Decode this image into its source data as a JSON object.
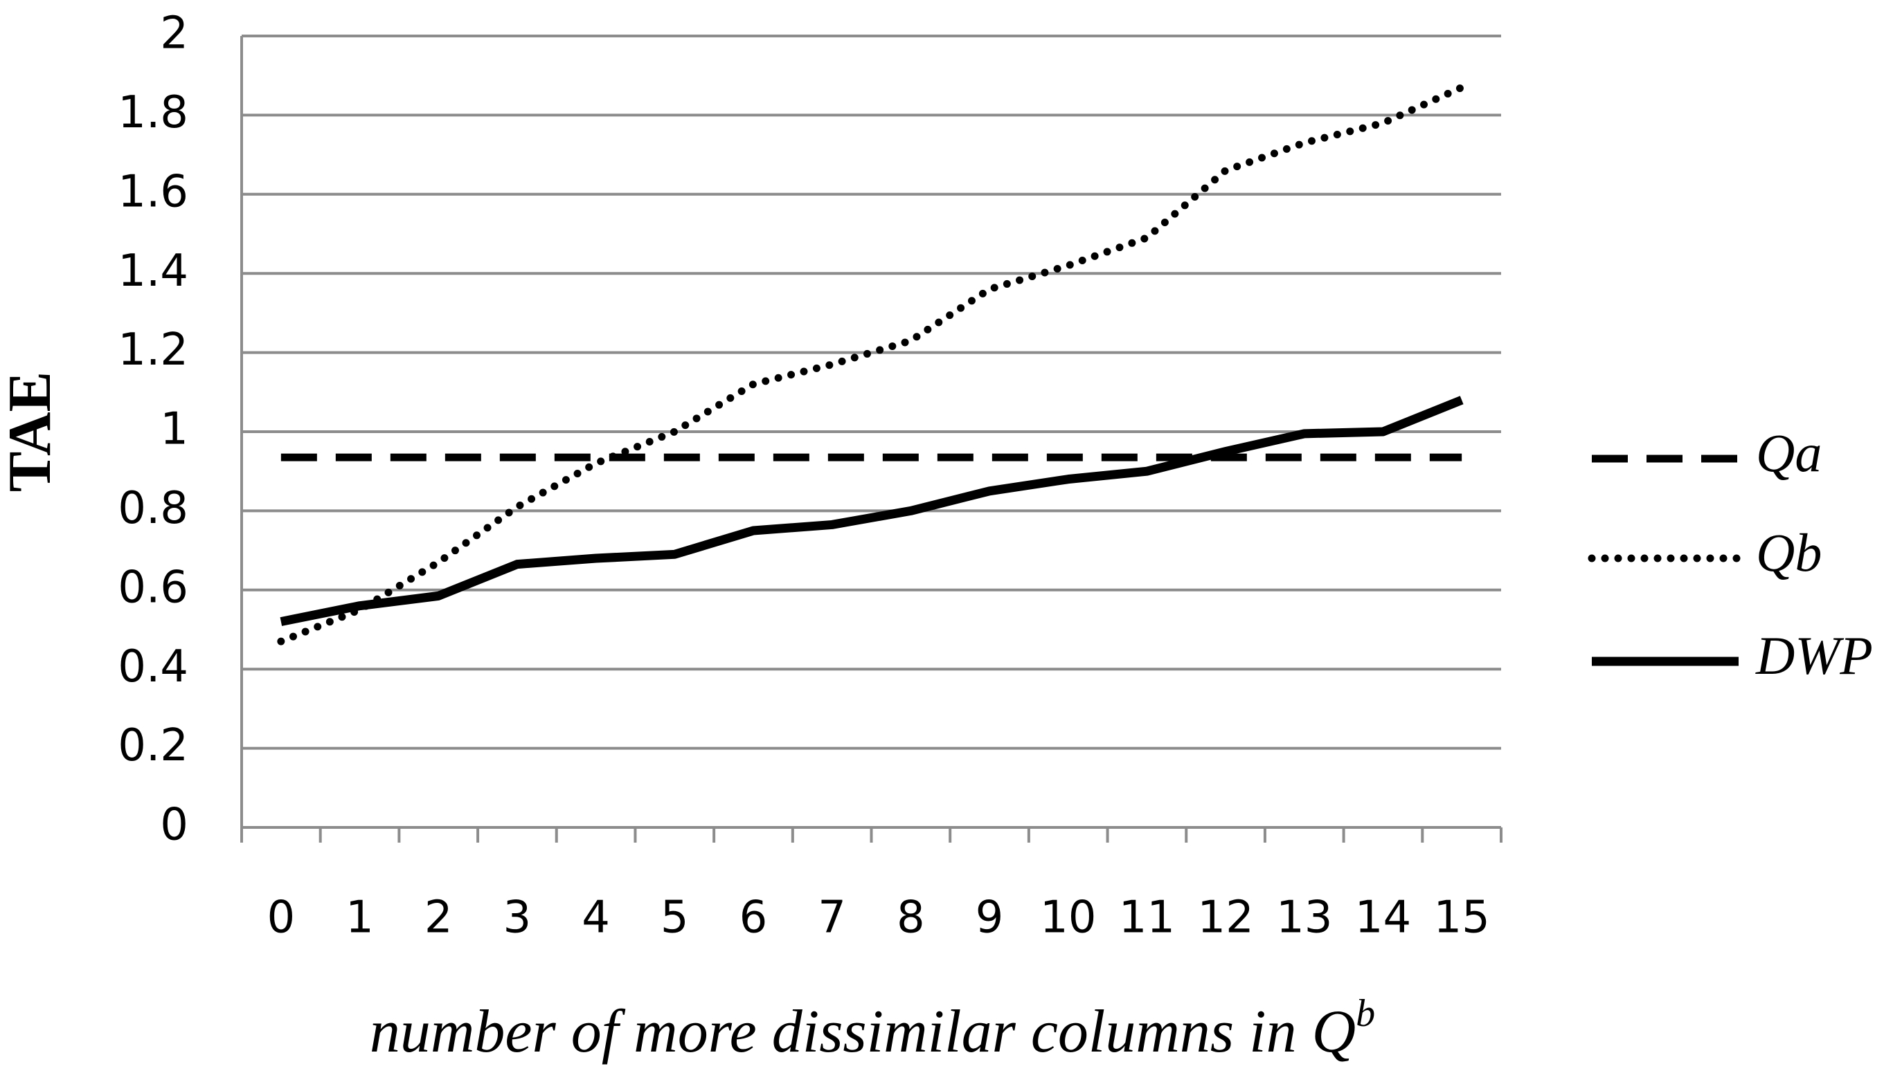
{
  "chart_data": {
    "type": "line",
    "y_label": "TAE",
    "x_label": "number of more dissimilar columns in Q",
    "x_label_sup": "b",
    "categories": [
      "0",
      "1",
      "2",
      "3",
      "4",
      "5",
      "6",
      "7",
      "8",
      "9",
      "10",
      "11",
      "12",
      "13",
      "14",
      "15"
    ],
    "series": [
      {
        "name": "Qa",
        "color": "#000000",
        "style": "dashed",
        "values": [
          0.935,
          0.935,
          0.935,
          0.935,
          0.935,
          0.935,
          0.935,
          0.935,
          0.935,
          0.935,
          0.935,
          0.935,
          0.935,
          0.935,
          0.935,
          0.935
        ]
      },
      {
        "name": "Qb",
        "color": "#000000",
        "style": "dotted",
        "values": [
          0.47,
          0.55,
          0.67,
          0.81,
          0.92,
          1.0,
          1.12,
          1.17,
          1.23,
          1.36,
          1.42,
          1.49,
          1.66,
          1.73,
          1.78,
          1.87
        ]
      },
      {
        "name": "DWP",
        "color": "#000000",
        "style": "solid",
        "values": [
          0.52,
          0.56,
          0.585,
          0.665,
          0.68,
          0.69,
          0.75,
          0.765,
          0.8,
          0.85,
          0.88,
          0.9,
          0.95,
          0.995,
          1.0,
          1.08
        ]
      }
    ],
    "ylim": [
      0,
      2
    ],
    "yticks": [
      0,
      0.2,
      0.4,
      0.6,
      0.8,
      1,
      1.2,
      1.4,
      1.6,
      1.8,
      2
    ],
    "grid": true,
    "legend": "right"
  }
}
